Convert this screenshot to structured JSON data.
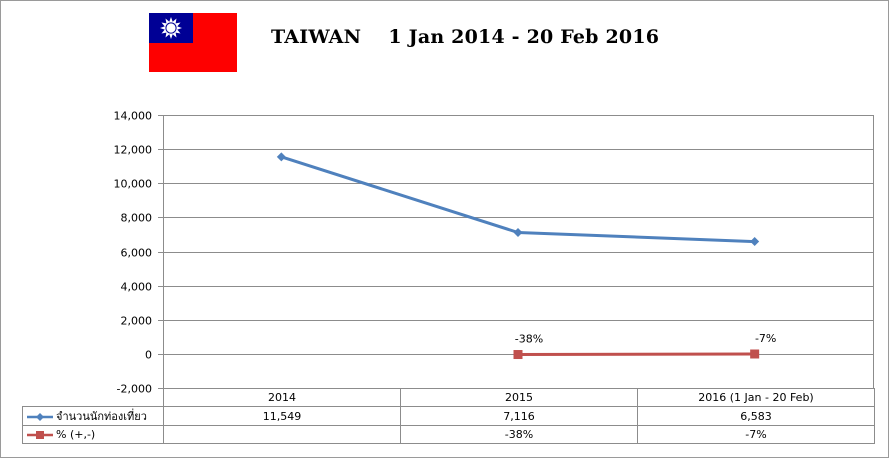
{
  "title": "TAIWAN    1 Jan 2014 - 20 Feb 2016",
  "flag": {
    "name": "Taiwan flag",
    "red": "#FE0000",
    "blue": "#000095",
    "sun": "#FFFFFF"
  },
  "chart_data": {
    "type": "line",
    "title": "TAIWAN    1 Jan 2014 - 20 Feb 2016",
    "categories": [
      "2014",
      "2015",
      "2016 (1 Jan - 20 Feb)"
    ],
    "ylim": [
      -2000,
      14000
    ],
    "yticks": [
      -2000,
      0,
      2000,
      4000,
      6000,
      8000,
      10000,
      12000,
      14000
    ],
    "ytick_labels": [
      "-2,000",
      "0",
      "2,000",
      "4,000",
      "6,000",
      "8,000",
      "10,000",
      "12,000",
      "14,000"
    ],
    "grid": true,
    "legend": "data-table",
    "series": [
      {
        "name": "จำนวนนักท่องเที่ยว",
        "color": "#4F81BD",
        "marker": "diamond",
        "values": [
          11549,
          7116,
          6583
        ],
        "table_values": [
          "11,549",
          "7,116",
          "6,583"
        ]
      },
      {
        "name": "% (+,-)",
        "color": "#C0504D",
        "marker": "square",
        "values": [
          null,
          -38,
          -7
        ],
        "table_values": [
          "",
          "-38%",
          "-7%"
        ],
        "data_labels": [
          "",
          "-38%",
          "-7%"
        ]
      }
    ]
  }
}
